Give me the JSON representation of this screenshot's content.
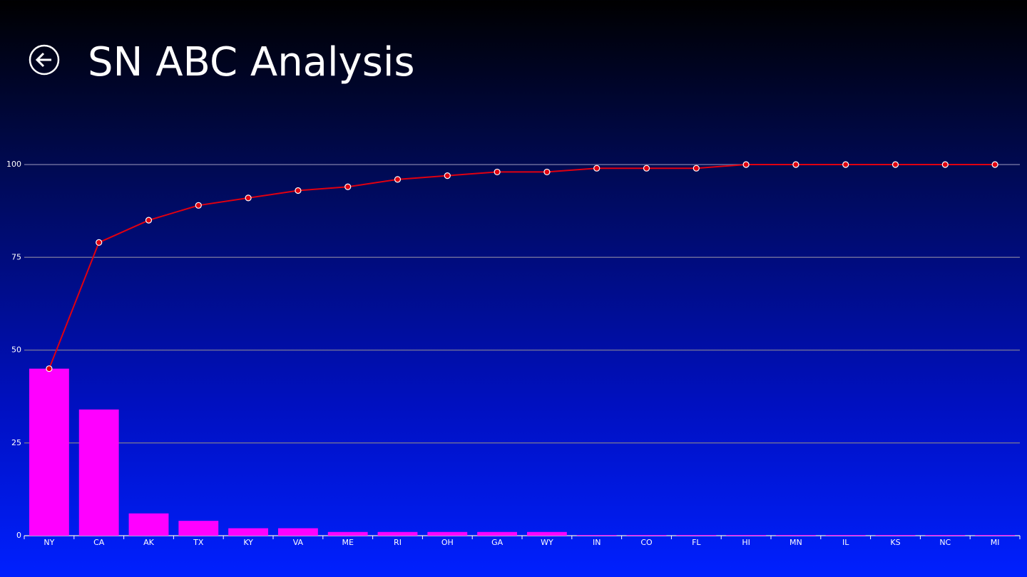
{
  "chart_data": {
    "type": "bar",
    "title": "SN ABC Analysis",
    "categories": [
      "NY",
      "CA",
      "AK",
      "TX",
      "KY",
      "VA",
      "ME",
      "RI",
      "OH",
      "GA",
      "WY",
      "IN",
      "CO",
      "FL",
      "HI",
      "MN",
      "IL",
      "KS",
      "NC",
      "MI"
    ],
    "series": [
      {
        "type": "bar",
        "color": "#ff00ff",
        "values": [
          45,
          34,
          6,
          4,
          2,
          2,
          1,
          1,
          1,
          1,
          1,
          0,
          0,
          0,
          0,
          0,
          0,
          0,
          0,
          0
        ]
      },
      {
        "type": "line",
        "color": "#e00010",
        "values": [
          45,
          79,
          85,
          89,
          91,
          93,
          94,
          96,
          97,
          98,
          98,
          99,
          99,
          99,
          100,
          100,
          100,
          100,
          100,
          100
        ]
      }
    ],
    "ylim": [
      0,
      100
    ],
    "yticks": [
      0,
      25,
      50,
      75,
      100
    ],
    "grid": true
  }
}
